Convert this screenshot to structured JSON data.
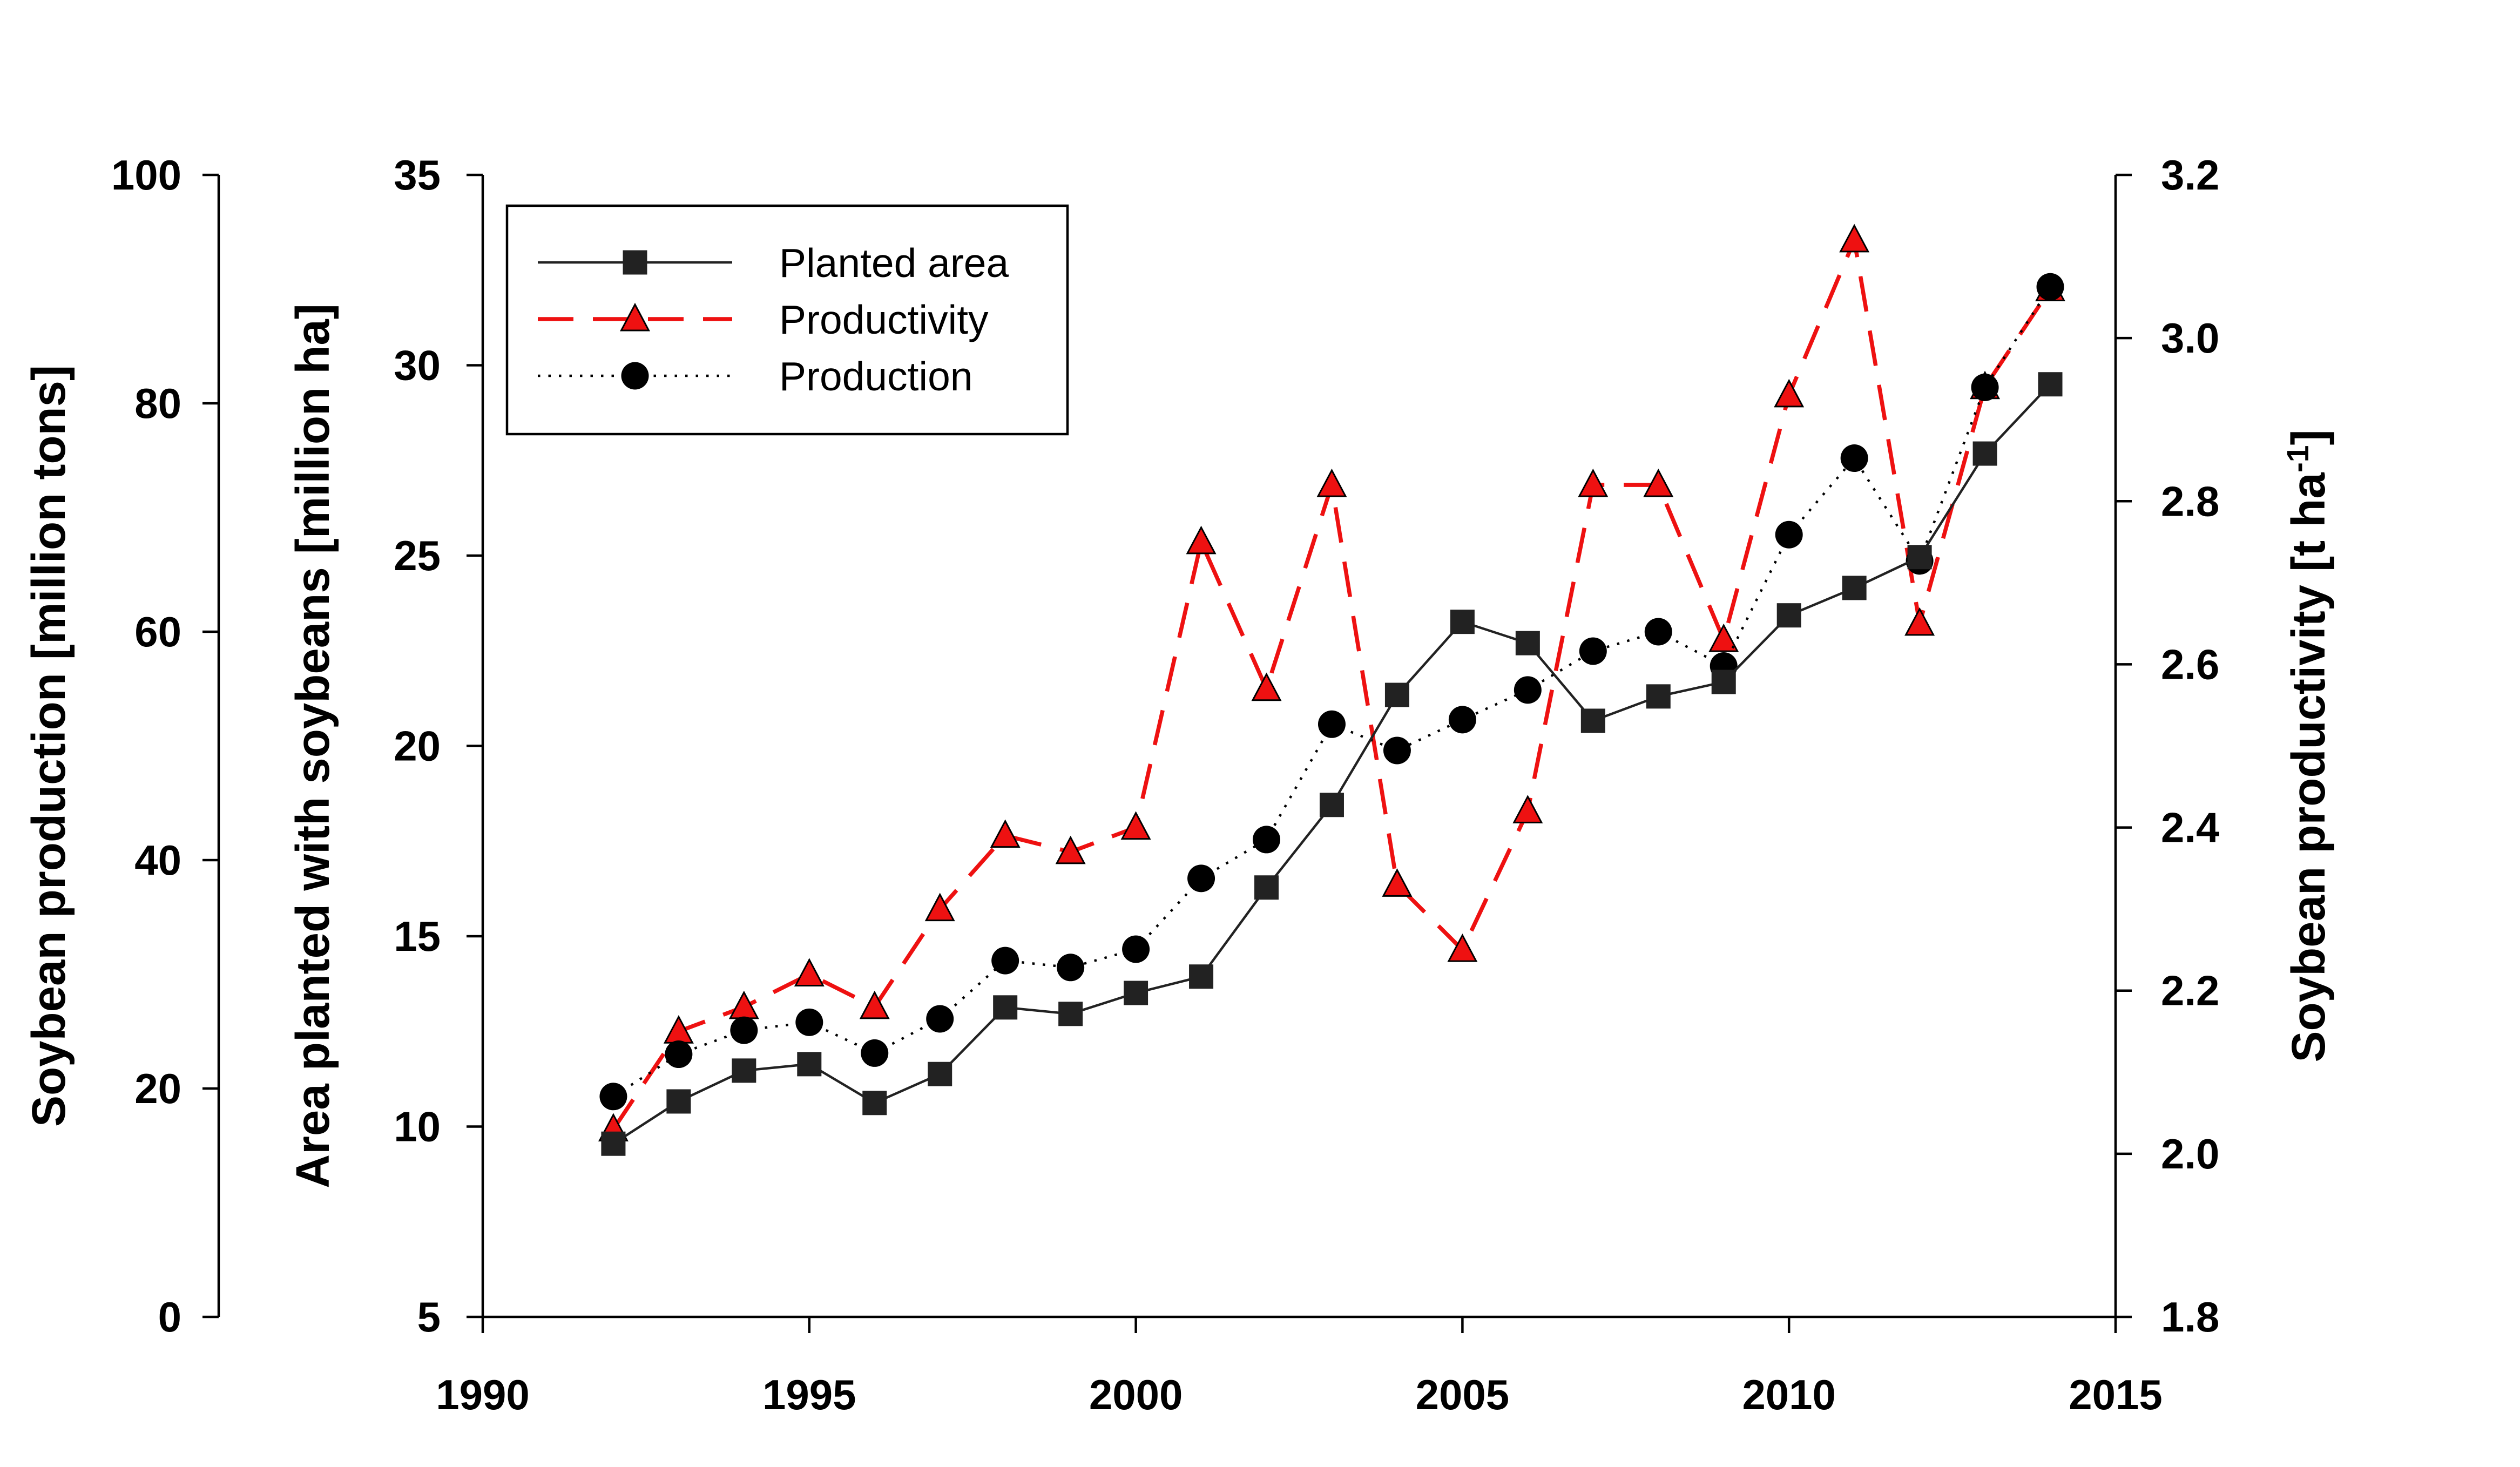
{
  "chart_data": {
    "type": "line",
    "title": "",
    "xlabel": "",
    "x": [
      1992,
      1993,
      1994,
      1995,
      1996,
      1997,
      1998,
      1999,
      2000,
      2001,
      2002,
      2003,
      2004,
      2005,
      2006,
      2007,
      2008,
      2009,
      2010,
      2011,
      2012,
      2013,
      2014
    ],
    "xlim": [
      1990,
      2015
    ],
    "xticks": [
      "1990",
      "1995",
      "2000",
      "2005",
      "2010",
      "2015"
    ],
    "axes": {
      "production": {
        "label": "Soybean production [million tons]",
        "lim": [
          0,
          100
        ],
        "ticks": [
          "0",
          "20",
          "40",
          "60",
          "80",
          "100"
        ]
      },
      "area": {
        "label": "Area planted with soybeans [million ha]",
        "lim": [
          5,
          35
        ],
        "ticks": [
          "5",
          "10",
          "15",
          "20",
          "25",
          "30",
          "35"
        ]
      },
      "productivity": {
        "label": "Soybean productivity [t ha",
        "label_sup": "-1",
        "label_end": "]",
        "lim": [
          1.8,
          3.2
        ],
        "ticks": [
          "1.8",
          "2.0",
          "2.2",
          "2.4",
          "2.6",
          "2.8",
          "3.0",
          "3.2"
        ]
      }
    },
    "series": [
      {
        "name": "Planted area",
        "axis": "area",
        "color": "#222222",
        "marker": "square",
        "line": "solid",
        "values": [
          9.55,
          10.66,
          11.47,
          11.64,
          10.62,
          11.38,
          13.13,
          12.96,
          13.51,
          13.94,
          16.28,
          18.45,
          21.34,
          23.26,
          22.7,
          20.66,
          21.3,
          21.68,
          23.43,
          24.15,
          24.96,
          27.68,
          29.5
        ]
      },
      {
        "name": "Productivity",
        "axis": "productivity",
        "color": "#ee1111",
        "marker": "triangle",
        "line": "dashed",
        "values": [
          2.03,
          2.15,
          2.18,
          2.22,
          2.18,
          2.3,
          2.39,
          2.37,
          2.4,
          2.75,
          2.57,
          2.82,
          2.33,
          2.25,
          2.42,
          2.82,
          2.82,
          2.63,
          2.93,
          3.12,
          2.65,
          2.94,
          3.06
        ]
      },
      {
        "name": "Production",
        "axis": "production",
        "color": "#000000",
        "marker": "circle",
        "line": "dotted",
        "values": [
          19.3,
          23.0,
          25.1,
          25.8,
          23.1,
          26.1,
          31.2,
          30.6,
          32.2,
          38.4,
          41.8,
          51.9,
          49.6,
          52.3,
          54.9,
          58.3,
          60.0,
          57.0,
          68.5,
          75.2,
          66.2,
          81.4,
          90.2
        ]
      }
    ],
    "legend": {
      "position": "top-left",
      "entries": [
        "Planted area",
        "Productivity",
        "Production"
      ]
    },
    "grid": false
  }
}
